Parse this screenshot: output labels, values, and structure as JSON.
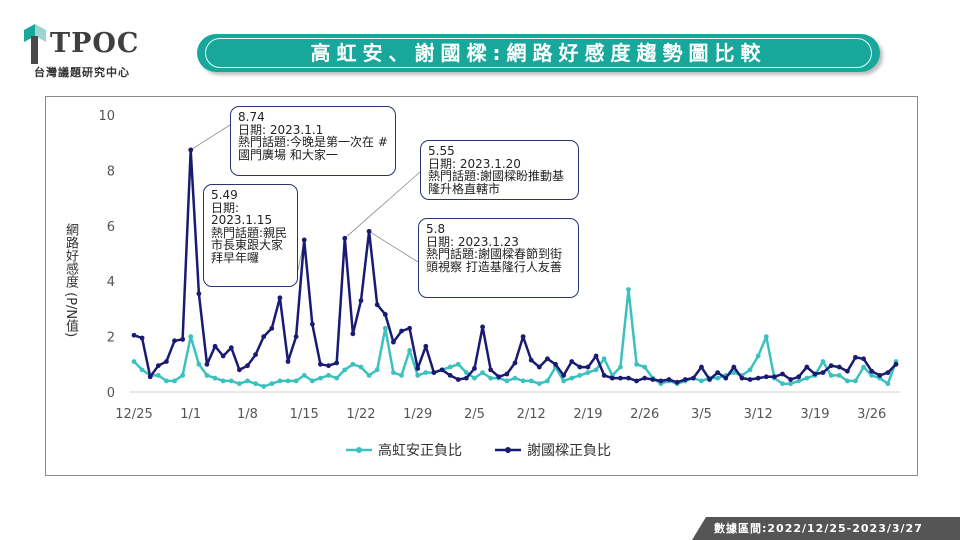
{
  "header": {
    "logo_word": "TPOC",
    "logo_sub": "台灣議題研究中心",
    "title": "高虹安、謝國樑:網路好感度趨勢圖比較"
  },
  "source_label": "數據區間:2022/12/25-2023/3/27",
  "colors": {
    "teal": "#3cc1bf",
    "navy": "#1a1a72",
    "banner": "#17a89b"
  },
  "annotations": [
    {
      "value": "8.74",
      "date": "日期: 2023.1.1",
      "topic": "熱門話題:今晚是第一次在 #國門廣場 和大家一"
    },
    {
      "value": "5.49",
      "date": "日期: 2023.1.15",
      "topic": "熱門話題:親民市長東跟大家拜早年囉"
    },
    {
      "value": "5.55",
      "date": "日期: 2023.1.20",
      "topic": "熱門話題:謝國樑盼推動基隆升格直轄市"
    },
    {
      "value": "5.8",
      "date": "日期: 2023.1.23",
      "topic": "熱門話題:謝國樑春節到街頭視察 打造基隆行人友善"
    }
  ],
  "chart_data": {
    "type": "line",
    "ylabel": "網路好感度 (P/N值)",
    "xlabel": "",
    "ylim": [
      0,
      10
    ],
    "yticks": [
      "0",
      "2",
      "4",
      "6",
      "8",
      "10"
    ],
    "x_ticks": [
      "12/25",
      "1/1",
      "1/8",
      "1/15",
      "1/22",
      "1/29",
      "2/5",
      "2/12",
      "2/19",
      "2/26",
      "3/5",
      "3/12",
      "3/19",
      "3/26"
    ],
    "legend_position": "bottom",
    "grid": false,
    "series": [
      {
        "name": "高虹安正負比",
        "color": "#3cc1bf",
        "values": [
          1.1,
          0.8,
          0.6,
          0.6,
          0.4,
          0.4,
          0.6,
          2.0,
          1.0,
          0.6,
          0.5,
          0.4,
          0.4,
          0.3,
          0.4,
          0.3,
          0.2,
          0.3,
          0.4,
          0.4,
          0.4,
          0.6,
          0.4,
          0.5,
          0.6,
          0.5,
          0.8,
          1.0,
          0.9,
          0.6,
          0.8,
          2.3,
          0.7,
          0.6,
          1.5,
          0.6,
          0.7,
          0.7,
          0.8,
          0.9,
          1.0,
          0.7,
          0.5,
          0.7,
          0.5,
          0.5,
          0.4,
          0.5,
          0.4,
          0.4,
          0.3,
          0.4,
          0.9,
          0.4,
          0.5,
          0.6,
          0.7,
          0.8,
          1.2,
          0.6,
          0.9,
          3.7,
          1.0,
          0.9,
          0.5,
          0.3,
          0.4,
          0.3,
          0.4,
          0.5,
          0.4,
          0.5,
          0.5,
          0.6,
          0.7,
          0.6,
          0.8,
          1.3,
          2.0,
          0.5,
          0.3,
          0.3,
          0.4,
          0.5,
          0.6,
          1.1,
          0.6,
          0.6,
          0.4,
          0.4,
          0.9,
          0.6,
          0.5,
          0.3,
          1.1
        ]
      },
      {
        "name": "謝國樑正負比",
        "color": "#1a1a72",
        "values": [
          2.05,
          1.95,
          0.55,
          0.95,
          1.1,
          1.85,
          1.9,
          8.74,
          3.55,
          1.0,
          1.65,
          1.3,
          1.6,
          0.8,
          0.95,
          1.35,
          2.0,
          2.3,
          3.4,
          1.1,
          2.0,
          5.49,
          2.45,
          1.0,
          0.95,
          1.05,
          5.55,
          2.1,
          3.3,
          5.8,
          3.15,
          2.8,
          1.8,
          2.2,
          2.3,
          0.85,
          1.65,
          0.7,
          0.8,
          0.6,
          0.45,
          0.5,
          0.85,
          2.35,
          0.8,
          0.55,
          0.65,
          1.05,
          2.0,
          1.15,
          0.9,
          1.2,
          1.0,
          0.6,
          1.1,
          0.9,
          0.9,
          1.3,
          0.6,
          0.5,
          0.5,
          0.5,
          0.4,
          0.5,
          0.45,
          0.4,
          0.45,
          0.35,
          0.45,
          0.5,
          0.9,
          0.45,
          0.7,
          0.5,
          0.9,
          0.5,
          0.45,
          0.5,
          0.55,
          0.55,
          0.65,
          0.45,
          0.55,
          0.9,
          0.65,
          0.7,
          0.95,
          0.9,
          0.75,
          1.25,
          1.2,
          0.75,
          0.6,
          0.7,
          1.0
        ]
      }
    ]
  }
}
